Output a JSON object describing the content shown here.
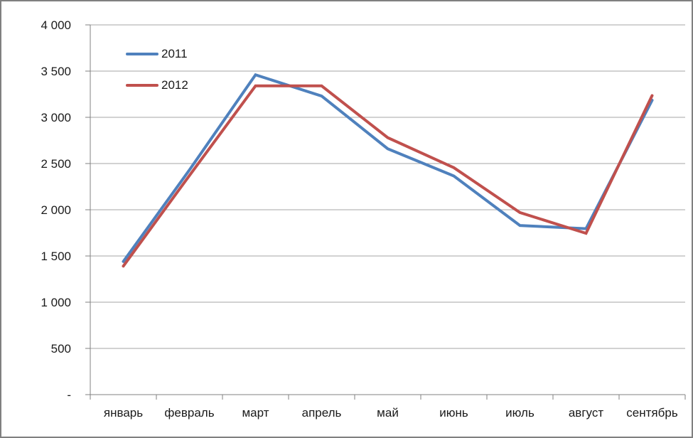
{
  "window": {
    "background_color": "#ffffff",
    "border_color": "#808080"
  },
  "chart_data": {
    "type": "line",
    "title": "",
    "categories": [
      "январь",
      "февраль",
      "март",
      "апрель",
      "май",
      "июнь",
      "июль",
      "август",
      "сентябрь"
    ],
    "series": [
      {
        "name": "2011",
        "color": "#4F81BD",
        "values": [
          1440,
          2430,
          3460,
          3230,
          2660,
          2365,
          1830,
          1795,
          3185
        ]
      },
      {
        "name": "2012",
        "color": "#C0504D",
        "values": [
          1390,
          2370,
          3340,
          3340,
          2780,
          2455,
          1970,
          1745,
          3235
        ]
      }
    ],
    "xlabel": "",
    "ylabel": "",
    "ylim": [
      0,
      4000
    ],
    "y_ticks": [
      {
        "value": 0,
        "label": "-"
      },
      {
        "value": 500,
        "label": "500"
      },
      {
        "value": 1000,
        "label": "1 000"
      },
      {
        "value": 1500,
        "label": "1 500"
      },
      {
        "value": 2000,
        "label": "2 000"
      },
      {
        "value": 2500,
        "label": "2 500"
      },
      {
        "value": 3000,
        "label": "3 000"
      },
      {
        "value": 3500,
        "label": "3 500"
      },
      {
        "value": 4000,
        "label": "4 000"
      }
    ],
    "grid": true,
    "legend_position": "inside-top-left",
    "line_width": 4,
    "gridline_color": "#A6A6A6",
    "axis_color": "#808080",
    "text_color": "#1a1a1a"
  }
}
